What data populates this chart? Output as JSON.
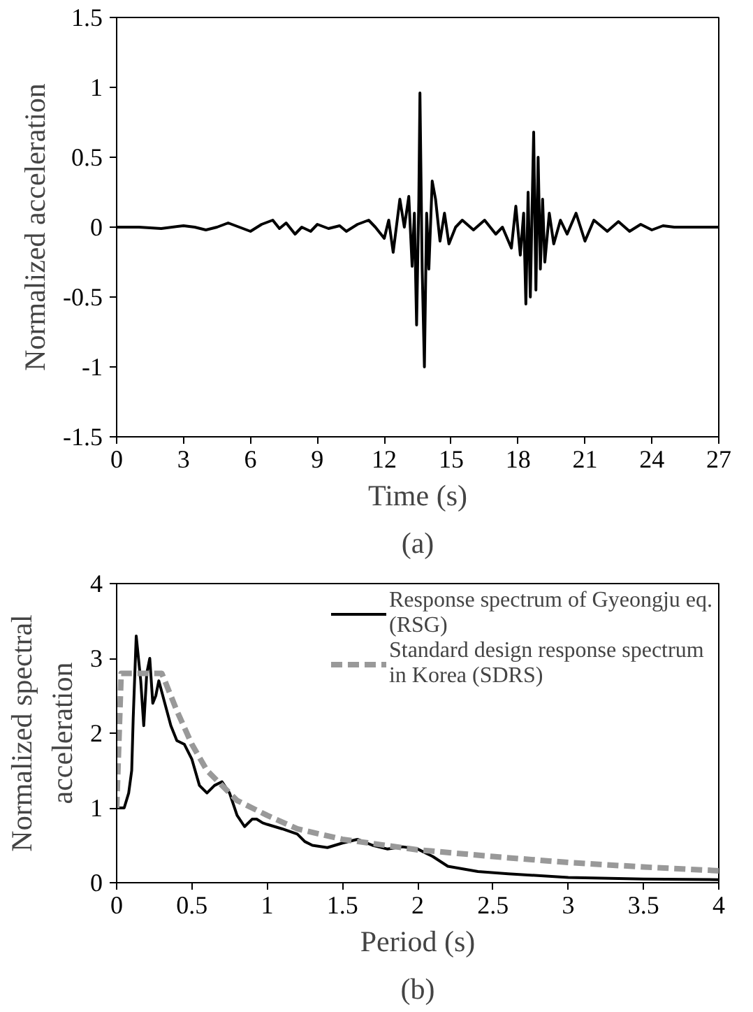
{
  "chart_data": [
    {
      "type": "line",
      "xlabel": "Time (s)",
      "ylabel": "Normalized acceleration",
      "annotations": [
        "(a)"
      ],
      "xlim": [
        0,
        27
      ],
      "xticks": [
        0,
        3,
        6,
        9,
        12,
        15,
        18,
        21,
        24,
        27
      ],
      "ylim": [
        -1.5,
        1.5
      ],
      "yticks": [
        -1.5,
        -1,
        -0.5,
        0,
        0.5,
        1,
        1.5
      ],
      "grid": false,
      "legend": false,
      "series": [
        {
          "color": "#000000",
          "line_style": "solid",
          "x": [
            0,
            1,
            2,
            3,
            3.5,
            4,
            4.5,
            5,
            5.5,
            6,
            6.5,
            7,
            7.3,
            7.6,
            8,
            8.3,
            8.7,
            9,
            9.5,
            10,
            10.3,
            10.8,
            11.3,
            11.6,
            12,
            12.2,
            12.4,
            12.7,
            12.9,
            13.1,
            13.25,
            13.35,
            13.45,
            13.55,
            13.6,
            13.7,
            13.8,
            13.9,
            14.0,
            14.15,
            14.3,
            14.5,
            14.7,
            14.9,
            15.2,
            15.5,
            16,
            16.5,
            17,
            17.3,
            17.7,
            17.9,
            18.1,
            18.25,
            18.35,
            18.45,
            18.55,
            18.65,
            18.7,
            18.8,
            18.9,
            19.0,
            19.1,
            19.2,
            19.4,
            19.6,
            19.9,
            20.2,
            20.6,
            21,
            21.4,
            22,
            22.5,
            23,
            23.5,
            24,
            24.5,
            25,
            27
          ],
          "values": [
            0,
            0,
            -0.01,
            0.01,
            0,
            -0.02,
            0,
            0.03,
            0,
            -0.03,
            0.02,
            0.05,
            -0.01,
            0.03,
            -0.05,
            0,
            -0.03,
            0.02,
            -0.01,
            0.01,
            -0.03,
            0.02,
            0.05,
            0,
            -0.08,
            0.05,
            -0.18,
            0.2,
            0,
            0.22,
            -0.28,
            0.1,
            -0.7,
            0.2,
            0.96,
            -0.3,
            -1.0,
            0.1,
            -0.3,
            0.33,
            0.2,
            -0.1,
            0.1,
            -0.12,
            0,
            0.05,
            -0.02,
            0.05,
            -0.05,
            0,
            -0.15,
            0.15,
            -0.2,
            0.1,
            -0.55,
            0.25,
            -0.5,
            0.3,
            0.68,
            -0.45,
            0.5,
            -0.3,
            0.2,
            -0.25,
            0.1,
            -0.12,
            0.05,
            -0.05,
            0.1,
            -0.1,
            0.05,
            -0.03,
            0.04,
            -0.03,
            0.02,
            -0.02,
            0.01,
            0,
            0
          ]
        }
      ]
    },
    {
      "type": "line",
      "xlabel": "Period (s)",
      "ylabel": "Normalized spectral acceleration",
      "annotations": [
        "(b)"
      ],
      "xlim": [
        0,
        4
      ],
      "xticks": [
        0,
        0.5,
        1,
        1.5,
        2,
        2.5,
        3,
        3.5,
        4
      ],
      "ylim": [
        0,
        4
      ],
      "yticks": [
        0,
        1,
        2,
        3,
        4
      ],
      "grid": false,
      "legend": "top right",
      "series": [
        {
          "name": "Response spectrum of Gyeongju eq. (RSG)",
          "color": "#000000",
          "line_style": "solid",
          "x": [
            0,
            0.05,
            0.08,
            0.1,
            0.11,
            0.13,
            0.16,
            0.18,
            0.2,
            0.22,
            0.24,
            0.26,
            0.28,
            0.32,
            0.36,
            0.4,
            0.45,
            0.5,
            0.55,
            0.6,
            0.65,
            0.7,
            0.75,
            0.8,
            0.85,
            0.9,
            0.93,
            0.97,
            1.0,
            1.1,
            1.2,
            1.25,
            1.3,
            1.4,
            1.5,
            1.6,
            1.7,
            1.8,
            1.9,
            2.0,
            2.1,
            2.2,
            2.4,
            2.6,
            3,
            3.5,
            4
          ],
          "values": [
            1.0,
            1.0,
            1.2,
            1.5,
            2.2,
            3.3,
            2.7,
            2.1,
            2.8,
            3.0,
            2.4,
            2.5,
            2.7,
            2.4,
            2.1,
            1.9,
            1.85,
            1.65,
            1.3,
            1.2,
            1.3,
            1.35,
            1.2,
            0.9,
            0.75,
            0.85,
            0.85,
            0.8,
            0.78,
            0.72,
            0.65,
            0.55,
            0.5,
            0.47,
            0.53,
            0.58,
            0.5,
            0.45,
            0.48,
            0.45,
            0.35,
            0.22,
            0.15,
            0.12,
            0.07,
            0.05,
            0.04
          ]
        },
        {
          "name": "Standard design response spectrum in Korea (SDRS)",
          "color": "#999999",
          "line_style": "dashed",
          "x": [
            0,
            0.03,
            0.3,
            0.4,
            0.5,
            0.6,
            0.7,
            0.8,
            1,
            1.2,
            1.5,
            2,
            2.5,
            3,
            3.5,
            4
          ],
          "values": [
            1.0,
            2.8,
            2.8,
            2.3,
            1.85,
            1.5,
            1.3,
            1.1,
            0.9,
            0.72,
            0.58,
            0.44,
            0.35,
            0.27,
            0.21,
            0.16
          ]
        }
      ]
    }
  ]
}
